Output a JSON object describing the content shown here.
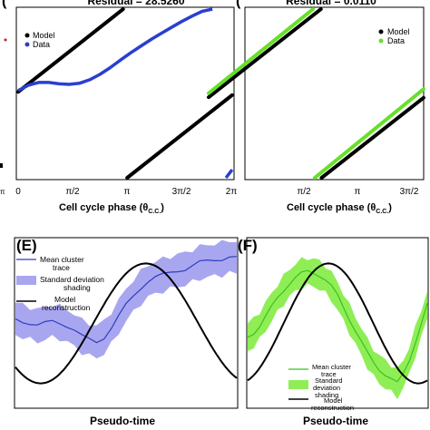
{
  "chart_data": [
    {
      "panel": "",
      "type": "scatter",
      "title": "Residual = 28.5260",
      "xlabel": "Cell cycle phase (θC.C.)",
      "ylabel": "",
      "xlim": [
        0,
        6.2832
      ],
      "ylim": [
        0,
        6.2832
      ],
      "x_tick_labels": [
        "0",
        "π/2",
        "π",
        "3π/2",
        "2π"
      ],
      "legend": {
        "placement": "top-left",
        "entries": [
          "Model",
          "Data"
        ]
      },
      "series": [
        {
          "name": "Model",
          "color": "#000000",
          "segments": [
            [
              [
                0.0,
                3.2
              ],
              [
                3.08,
                6.28
              ]
            ],
            [
              [
                3.2,
                0.0
              ],
              [
                6.28,
                3.08
              ]
            ]
          ]
        },
        {
          "name": "Data",
          "color": "#2a3fd0",
          "points": [
            [
              0.0,
              3.25
            ],
            [
              0.3,
              3.45
            ],
            [
              0.6,
              3.55
            ],
            [
              0.9,
              3.55
            ],
            [
              1.2,
              3.5
            ],
            [
              1.5,
              3.48
            ],
            [
              1.8,
              3.52
            ],
            [
              2.1,
              3.65
            ],
            [
              2.4,
              3.85
            ],
            [
              2.7,
              4.1
            ],
            [
              3.0,
              4.38
            ],
            [
              3.3,
              4.65
            ],
            [
              3.6,
              4.9
            ],
            [
              3.9,
              5.15
            ],
            [
              4.2,
              5.38
            ],
            [
              4.5,
              5.6
            ],
            [
              4.8,
              5.82
            ],
            [
              5.1,
              6.02
            ],
            [
              5.4,
              6.2
            ],
            [
              5.7,
              6.28
            ]
          ],
          "wrap_points": [
            [
              6.1,
              0.0
            ],
            [
              6.28,
              0.3
            ]
          ]
        }
      ]
    },
    {
      "panel": "",
      "type": "scatter",
      "title": "Residual = 0.0110",
      "xlabel": "Cell cycle phase (θC.C.)",
      "ylabel": "",
      "xlim": [
        0,
        6.2832
      ],
      "ylim": [
        0,
        6.2832
      ],
      "x_tick_labels": [
        "π/2",
        "π",
        "3π/2"
      ],
      "legend": {
        "placement": "top-right",
        "entries": [
          "Model",
          "Data"
        ]
      },
      "series": [
        {
          "name": "Model",
          "color": "#000000",
          "segments": [
            [
              [
                0.0,
                3.0
              ],
              [
                3.28,
                6.28
              ]
            ],
            [
              [
                3.3,
                0.0
              ],
              [
                6.28,
                2.98
              ]
            ]
          ]
        },
        {
          "name": "Data",
          "color": "#66e02a",
          "segments": [
            [
              [
                0.0,
                3.15
              ],
              [
                3.05,
                6.28
              ]
            ],
            [
              [
                3.1,
                0.0
              ],
              [
                6.28,
                3.3
              ]
            ]
          ]
        }
      ]
    },
    {
      "panel": "(E)",
      "type": "line",
      "xlabel": "Pseudo-time",
      "ylabel": "",
      "legend": {
        "placement": "top-left",
        "entries": [
          "Mean cluster trace",
          "Standard deviation shading",
          "Model reconstruction"
        ]
      },
      "series": [
        {
          "name": "Mean cluster trace",
          "color": "#2a3fc0",
          "y": [
            0.1,
            0.05,
            0.0,
            -0.05,
            0.0,
            0.05,
            0.02,
            -0.05,
            -0.15,
            -0.28,
            -0.35,
            -0.4,
            -0.3,
            -0.1,
            0.15,
            0.4,
            0.6,
            0.78,
            0.92,
            1.0,
            1.05,
            1.1,
            1.15,
            1.18,
            1.25,
            1.32,
            1.35,
            1.38,
            1.4,
            1.45,
            1.42
          ],
          "std": 0.35
        },
        {
          "name": "Model reconstruction",
          "color": "#000000",
          "function": "cosine",
          "period_fraction": 0.95,
          "amplitude": 1.0,
          "phase_shift": 0.62
        }
      ]
    },
    {
      "panel": "(F)",
      "type": "line",
      "xlabel": "Pseudo-time",
      "ylabel": "",
      "legend": {
        "placement": "bottom-left",
        "entries": [
          "Mean cluster trace",
          "Standard deviation shading",
          "Model reconstruction"
        ]
      },
      "series": [
        {
          "name": "Mean cluster trace",
          "color": "#3cc01e",
          "y": [
            -0.3,
            -0.2,
            -0.05,
            0.15,
            0.35,
            0.55,
            0.72,
            0.88,
            1.0,
            1.08,
            1.12,
            1.1,
            1.05,
            0.95,
            0.8,
            0.6,
            0.35,
            0.1,
            -0.15,
            -0.4,
            -0.65,
            -0.85,
            -1.0,
            -1.1,
            -1.2,
            -1.3,
            -1.1,
            -0.8,
            -0.4,
            0.0,
            0.4
          ],
          "std": 0.3
        },
        {
          "name": "Model reconstruction",
          "color": "#000000",
          "function": "cosine",
          "period_fraction": 1.0,
          "amplitude": 1.0,
          "phase_shift": 0.45
        }
      ]
    }
  ],
  "panels": {
    "top_left_title": "Residual = 28.5260",
    "top_right_title": "Residual = 0.0110",
    "xlabel_top": "Cell cycle phase (θ",
    "xlabel_sub": "C.C.",
    "xlabel_close": ")",
    "left_edge_tick": "π",
    "e_letter": "(E)",
    "f_letter": "(F)",
    "e_xlabel": "Pseudo-time",
    "f_xlabel": "Pseudo-time"
  },
  "legends": {
    "c_model": "Model",
    "c_data": "Data",
    "g_model": "Model",
    "g_data": "Data",
    "e_mean_1": "Mean cluster",
    "e_mean_2": "trace",
    "e_std_1": "Standard deviation",
    "e_std_2": "shading",
    "e_model_1": "Model",
    "e_model_2": "reconstruction",
    "f_mean_1": "Mean cluster",
    "f_mean_2": "trace",
    "f_std_1": "Standard",
    "f_std_2": "deviation",
    "f_std_3": "shading",
    "f_model_1": "Model",
    "f_model_2": "reconstruction"
  },
  "colors": {
    "model": "#000000",
    "data_blue": "#2a3fd0",
    "data_green": "#66e02a",
    "band_blue": "#a9a6f0",
    "band_green": "#8fee55",
    "red_marker": "#e01010"
  }
}
